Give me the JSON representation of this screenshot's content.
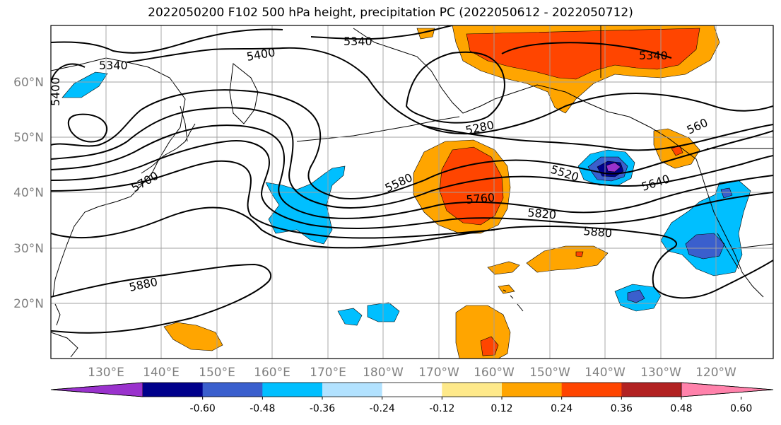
{
  "title": "2022050200 F102 500 hPa height, precipitation PC (2022050612 - 2022050712)",
  "lat_labels": [
    "60°N",
    "50°N",
    "40°N",
    "30°N",
    "20°N"
  ],
  "lon_labels": [
    "130°E",
    "140°E",
    "150°E",
    "160°E",
    "170°E",
    "180°W",
    "170°W",
    "160°W",
    "150°W",
    "140°W",
    "130°W",
    "120°W"
  ],
  "contour_labels": [
    "5340",
    "5400",
    "5340",
    "5400",
    "5340",
    "5280",
    "5700",
    "5580",
    "5760",
    "5520",
    "5820",
    "5640",
    "5880",
    "5880",
    "560"
  ],
  "colorbar": {
    "colors": [
      "#9a32cd",
      "#00008b",
      "#3a5fcd",
      "#00bfff",
      "#b2e2ff",
      "#ffffff",
      "#fee98a",
      "#ffa500",
      "#ff4500",
      "#b22222",
      "#ff82ab"
    ],
    "tick_labels": [
      "-0.60",
      "-0.48",
      "-0.36",
      "-0.24",
      "-0.12",
      "0.12",
      "0.24",
      "0.36",
      "0.48",
      "0.60"
    ]
  }
}
